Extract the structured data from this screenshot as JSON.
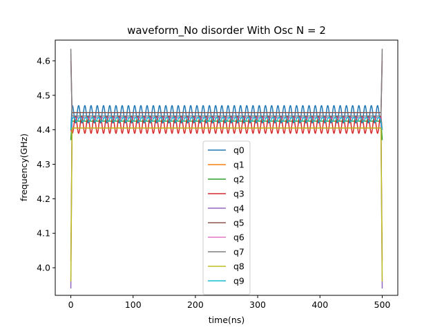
{
  "chart_data": {
    "type": "line",
    "title": "waveform_No disorder With Osc N =  2",
    "xlabel": "time(ns)",
    "ylabel": "frequency(GHz)",
    "xlim": [
      -25,
      525
    ],
    "ylim": [
      3.92,
      4.66
    ],
    "xticks": [
      0,
      100,
      200,
      300,
      400,
      500
    ],
    "yticks": [
      4.0,
      4.1,
      4.2,
      4.3,
      4.4,
      4.5,
      4.6
    ],
    "grid": false,
    "legend_position": "lower center",
    "ramp": {
      "start": 0,
      "end": 500,
      "edge_width": 2
    },
    "series": [
      {
        "name": "q0",
        "color": "#1f77b4",
        "center": 4.445,
        "amplitude": 0.025,
        "period": 10,
        "phase": 0,
        "start_value": 4.4,
        "end_value": 4.4
      },
      {
        "name": "q1",
        "color": "#ff7f0e",
        "center": 4.405,
        "amplitude": 0.0,
        "period": 10,
        "phase": 0,
        "start_value": 4.02,
        "end_value": 4.02
      },
      {
        "name": "q2",
        "color": "#2ca02c",
        "center": 4.425,
        "amplitude": 0.0,
        "period": 10,
        "phase": 0,
        "start_value": 4.37,
        "end_value": 4.37
      },
      {
        "name": "q3",
        "color": "#d62728",
        "center": 4.415,
        "amplitude": 0.025,
        "period": 10,
        "phase": 5,
        "start_value": 4.4,
        "end_value": 4.4
      },
      {
        "name": "q4",
        "color": "#9467bd",
        "center": 4.435,
        "amplitude": 0.0,
        "period": 10,
        "phase": 0,
        "start_value": 3.94,
        "end_value": 3.94
      },
      {
        "name": "q5",
        "color": "#8c564b",
        "center": 4.45,
        "amplitude": 0.0,
        "period": 10,
        "phase": 0,
        "start_value": 4.6,
        "end_value": 4.6
      },
      {
        "name": "q6",
        "color": "#e377c2",
        "center": 4.44,
        "amplitude": 0.0,
        "period": 10,
        "phase": 0,
        "start_value": 4.62,
        "end_value": 4.62
      },
      {
        "name": "q7",
        "color": "#7f7f7f",
        "center": 4.44,
        "amplitude": 0.0,
        "period": 10,
        "phase": 0,
        "start_value": 4.635,
        "end_value": 4.635
      },
      {
        "name": "q8",
        "color": "#bcbd22",
        "center": 4.405,
        "amplitude": 0.0,
        "period": 10,
        "phase": 0,
        "start_value": 3.96,
        "end_value": 3.96
      },
      {
        "name": "q9",
        "color": "#17becf",
        "center": 4.43,
        "amplitude": 0.006,
        "period": 10,
        "phase": 2,
        "start_value": 4.4,
        "end_value": 4.4
      }
    ]
  }
}
